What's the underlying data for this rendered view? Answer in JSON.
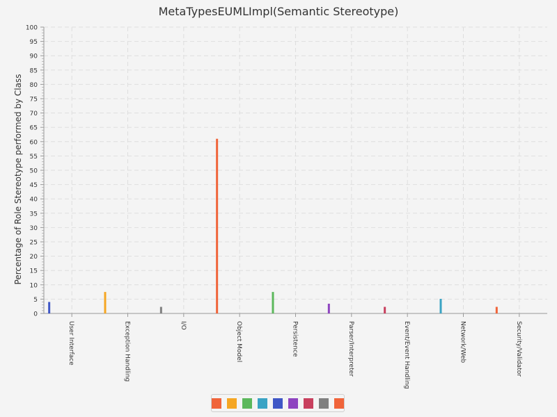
{
  "chart_data": {
    "type": "bar",
    "title": "MetaTypesEUMLImpl(Semantic Stereotype)",
    "xlabel": "",
    "ylabel": "Percentage of Role Stereotype performed by Class",
    "ylim": [
      0,
      100
    ],
    "ytick_step": 5,
    "grid": true,
    "legend_placement": "bottom",
    "categories": [
      "User Interface",
      "Exception Handling",
      "I/O",
      "Object Model",
      "Persistence",
      "Parser/Interpreter",
      "Event/Event Handling",
      "Network/Web",
      "Security/Validator"
    ],
    "series": [
      {
        "color": "#f0643a",
        "values": [
          0,
          0,
          0,
          0,
          0,
          0,
          0,
          0,
          0
        ]
      },
      {
        "color": "#f5a623",
        "values": [
          0,
          0,
          0,
          0,
          0,
          0,
          0,
          0,
          0
        ]
      },
      {
        "color": "#5cb85c",
        "values": [
          0,
          0,
          0,
          0,
          0,
          0,
          0,
          0,
          0
        ]
      },
      {
        "color": "#3aa3c4",
        "values": [
          0,
          0,
          0,
          0,
          0,
          0,
          0,
          0,
          0
        ]
      },
      {
        "color": "#3f57c6",
        "values": [
          0,
          0,
          0,
          0,
          0,
          0,
          0,
          0,
          0
        ]
      },
      {
        "color": "#8e44c0",
        "values": [
          0,
          0,
          0,
          0,
          0,
          0,
          0,
          0,
          0
        ]
      },
      {
        "color": "#c8405e",
        "values": [
          0,
          0,
          0,
          0,
          0,
          0,
          0,
          0,
          0
        ]
      },
      {
        "color": "#808080",
        "values": [
          0,
          0,
          0,
          0,
          0,
          0,
          0,
          0,
          0
        ]
      },
      {
        "color": "#f0643a",
        "values": [
          0,
          0,
          0,
          0,
          0,
          0,
          0,
          0,
          0
        ]
      }
    ],
    "bars": [
      {
        "category": "User Interface",
        "value": 4,
        "color": "#3f57c6"
      },
      {
        "category": "Exception Handling",
        "value": 7.5,
        "color": "#f5a623"
      },
      {
        "category": "I/O",
        "value": 2.3,
        "color": "#808080"
      },
      {
        "category": "Object Model",
        "value": 61,
        "color": "#f0643a"
      },
      {
        "category": "Persistence",
        "value": 7.5,
        "color": "#5cb85c"
      },
      {
        "category": "Parser/Interpreter",
        "value": 3.4,
        "color": "#8e44c0"
      },
      {
        "category": "Event/Event Handling",
        "value": 2.3,
        "color": "#c8405e"
      },
      {
        "category": "Network/Web",
        "value": 5.1,
        "color": "#3aa3c4"
      },
      {
        "category": "Security/Validator",
        "value": 2.3,
        "color": "#f0643a"
      }
    ],
    "legend": [
      {
        "color": "#f0643a"
      },
      {
        "color": "#f5a623"
      },
      {
        "color": "#5cb85c"
      },
      {
        "color": "#3aa3c4"
      },
      {
        "color": "#3f57c6"
      },
      {
        "color": "#8e44c0"
      },
      {
        "color": "#c8405e"
      },
      {
        "color": "#808080"
      },
      {
        "color": "#f0643a"
      }
    ]
  }
}
